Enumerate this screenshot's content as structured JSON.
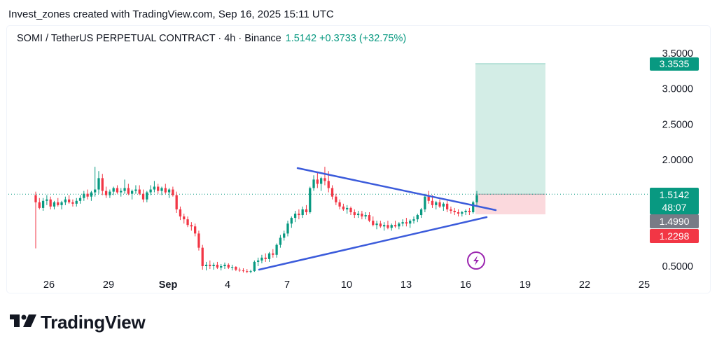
{
  "caption": "Invest_zones created with TradingView.com, Sep 16, 2025 15:11 UTC",
  "legend": {
    "symbol": "SOMI / TetherUS PERPETUAL CONTRACT · 4h · Binance",
    "last": "1.5142",
    "change": "+0.3733 (+32.75%)"
  },
  "brand": "TradingView",
  "colors": {
    "up": "#089981",
    "down": "#f23645",
    "trendline": "#3b5bdb",
    "profit_zone": "#d3ede6",
    "loss_zone": "#fbd9dd",
    "grey_badge": "#787b86"
  },
  "chart_data": {
    "type": "candlestick",
    "title": "SOMI / TetherUS PERPETUAL CONTRACT · 4h · Binance",
    "x_ticks": [
      "26",
      "29",
      "Sep",
      "4",
      "7",
      "10",
      "13",
      "16",
      "19",
      "22",
      "25"
    ],
    "y_ticks": [
      "3.5000",
      "3.0000",
      "2.5000",
      "2.0000",
      "0.5000"
    ],
    "ylim": [
      0.4,
      3.55
    ],
    "price_badges": [
      {
        "label": "3.3535",
        "value": 3.3535,
        "color": "#089981"
      },
      {
        "label": "1.5142",
        "sublabel": "48:07",
        "value": 1.5142,
        "color": "#089981"
      },
      {
        "label": "1.4990",
        "value": 1.499,
        "color": "#787b86"
      },
      {
        "label": "1.2298",
        "value": 1.2298,
        "color": "#f23645"
      }
    ],
    "last_price": 1.5142,
    "candles": [
      [
        1.5,
        1.55,
        0.75,
        1.4
      ],
      [
        1.4,
        1.46,
        1.3,
        1.32
      ],
      [
        1.32,
        1.46,
        1.28,
        1.42
      ],
      [
        1.42,
        1.5,
        1.36,
        1.44
      ],
      [
        1.44,
        1.48,
        1.3,
        1.34
      ],
      [
        1.34,
        1.42,
        1.3,
        1.4
      ],
      [
        1.4,
        1.46,
        1.34,
        1.36
      ],
      [
        1.36,
        1.42,
        1.3,
        1.4
      ],
      [
        1.4,
        1.48,
        1.36,
        1.44
      ],
      [
        1.44,
        1.5,
        1.38,
        1.4
      ],
      [
        1.4,
        1.44,
        1.34,
        1.38
      ],
      [
        1.38,
        1.46,
        1.34,
        1.42
      ],
      [
        1.42,
        1.5,
        1.38,
        1.46
      ],
      [
        1.46,
        1.56,
        1.42,
        1.52
      ],
      [
        1.52,
        1.58,
        1.44,
        1.48
      ],
      [
        1.48,
        1.56,
        1.42,
        1.54
      ],
      [
        1.54,
        1.9,
        1.48,
        1.58
      ],
      [
        1.58,
        1.84,
        1.52,
        1.74
      ],
      [
        1.74,
        1.8,
        1.5,
        1.56
      ],
      [
        1.56,
        1.62,
        1.46,
        1.5
      ],
      [
        1.5,
        1.58,
        1.46,
        1.55
      ],
      [
        1.55,
        1.62,
        1.5,
        1.6
      ],
      [
        1.6,
        1.64,
        1.52,
        1.54
      ],
      [
        1.54,
        1.6,
        1.48,
        1.56
      ],
      [
        1.56,
        1.72,
        1.52,
        1.6
      ],
      [
        1.6,
        1.66,
        1.5,
        1.52
      ],
      [
        1.52,
        1.58,
        1.44,
        1.56
      ],
      [
        1.56,
        1.64,
        1.52,
        1.58
      ],
      [
        1.58,
        1.64,
        1.5,
        1.52
      ],
      [
        1.52,
        1.58,
        1.4,
        1.44
      ],
      [
        1.44,
        1.56,
        1.4,
        1.54
      ],
      [
        1.54,
        1.64,
        1.5,
        1.58
      ],
      [
        1.58,
        1.7,
        1.54,
        1.62
      ],
      [
        1.62,
        1.66,
        1.52,
        1.56
      ],
      [
        1.56,
        1.62,
        1.5,
        1.6
      ],
      [
        1.6,
        1.66,
        1.52,
        1.54
      ],
      [
        1.54,
        1.6,
        1.46,
        1.58
      ],
      [
        1.58,
        1.62,
        1.48,
        1.5
      ],
      [
        1.5,
        1.55,
        1.25,
        1.3
      ],
      [
        1.3,
        1.34,
        1.15,
        1.2
      ],
      [
        1.2,
        1.24,
        1.1,
        1.16
      ],
      [
        1.16,
        1.2,
        1.05,
        1.08
      ],
      [
        1.08,
        1.12,
        1.0,
        1.06
      ],
      [
        1.06,
        1.1,
        0.92,
        0.96
      ],
      [
        0.96,
        1.0,
        0.72,
        0.76
      ],
      [
        0.76,
        0.8,
        0.45,
        0.5
      ],
      [
        0.5,
        0.56,
        0.44,
        0.52
      ],
      [
        0.52,
        0.58,
        0.46,
        0.5
      ],
      [
        0.5,
        0.55,
        0.45,
        0.52
      ],
      [
        0.52,
        0.56,
        0.46,
        0.48
      ],
      [
        0.48,
        0.53,
        0.44,
        0.5
      ],
      [
        0.5,
        0.55,
        0.46,
        0.52
      ],
      [
        0.52,
        0.54,
        0.46,
        0.48
      ],
      [
        0.48,
        0.52,
        0.44,
        0.49
      ],
      [
        0.49,
        0.5,
        0.43,
        0.45
      ],
      [
        0.45,
        0.48,
        0.42,
        0.44
      ],
      [
        0.44,
        0.47,
        0.41,
        0.43
      ],
      [
        0.43,
        0.46,
        0.4,
        0.42
      ],
      [
        0.42,
        0.45,
        0.4,
        0.43
      ],
      [
        0.43,
        0.58,
        0.42,
        0.56
      ],
      [
        0.56,
        0.62,
        0.5,
        0.58
      ],
      [
        0.58,
        0.66,
        0.54,
        0.62
      ],
      [
        0.62,
        0.68,
        0.56,
        0.6
      ],
      [
        0.6,
        0.7,
        0.56,
        0.68
      ],
      [
        0.68,
        0.74,
        0.62,
        0.66
      ],
      [
        0.66,
        0.82,
        0.62,
        0.8
      ],
      [
        0.8,
        0.94,
        0.76,
        0.9
      ],
      [
        0.9,
        1.0,
        0.86,
        0.96
      ],
      [
        0.96,
        1.14,
        0.92,
        1.1
      ],
      [
        1.1,
        1.2,
        1.04,
        1.18
      ],
      [
        1.18,
        1.28,
        1.12,
        1.24
      ],
      [
        1.24,
        1.3,
        1.16,
        1.22
      ],
      [
        1.22,
        1.34,
        1.18,
        1.3
      ],
      [
        1.3,
        1.36,
        1.22,
        1.26
      ],
      [
        1.26,
        1.62,
        1.24,
        1.6
      ],
      [
        1.6,
        1.78,
        1.56,
        1.72
      ],
      [
        1.72,
        1.82,
        1.6,
        1.66
      ],
      [
        1.66,
        1.76,
        1.56,
        1.74
      ],
      [
        1.74,
        1.9,
        1.64,
        1.7
      ],
      [
        1.7,
        1.84,
        1.54,
        1.6
      ],
      [
        1.6,
        1.64,
        1.44,
        1.48
      ],
      [
        1.48,
        1.52,
        1.36,
        1.4
      ],
      [
        1.4,
        1.44,
        1.3,
        1.34
      ],
      [
        1.34,
        1.38,
        1.28,
        1.3
      ],
      [
        1.3,
        1.36,
        1.24,
        1.32
      ],
      [
        1.32,
        1.34,
        1.22,
        1.26
      ],
      [
        1.26,
        1.3,
        1.18,
        1.22
      ],
      [
        1.22,
        1.28,
        1.18,
        1.24
      ],
      [
        1.24,
        1.28,
        1.16,
        1.2
      ],
      [
        1.2,
        1.26,
        1.16,
        1.22
      ],
      [
        1.22,
        1.26,
        1.12,
        1.14
      ],
      [
        1.14,
        1.2,
        1.06,
        1.08
      ],
      [
        1.08,
        1.14,
        1.02,
        1.1
      ],
      [
        1.1,
        1.14,
        1.04,
        1.06
      ],
      [
        1.06,
        1.12,
        1.0,
        1.08
      ],
      [
        1.08,
        1.14,
        1.02,
        1.04
      ],
      [
        1.04,
        1.1,
        1.0,
        1.08
      ],
      [
        1.08,
        1.14,
        1.04,
        1.06
      ],
      [
        1.06,
        1.12,
        1.02,
        1.1
      ],
      [
        1.1,
        1.16,
        1.06,
        1.12
      ],
      [
        1.12,
        1.18,
        1.06,
        1.1
      ],
      [
        1.1,
        1.16,
        1.04,
        1.14
      ],
      [
        1.14,
        1.2,
        1.1,
        1.16
      ],
      [
        1.16,
        1.24,
        1.12,
        1.22
      ],
      [
        1.22,
        1.32,
        1.18,
        1.3
      ],
      [
        1.3,
        1.52,
        1.26,
        1.48
      ],
      [
        1.48,
        1.56,
        1.38,
        1.42
      ],
      [
        1.42,
        1.5,
        1.32,
        1.36
      ],
      [
        1.36,
        1.42,
        1.3,
        1.4
      ],
      [
        1.4,
        1.44,
        1.32,
        1.34
      ],
      [
        1.34,
        1.4,
        1.28,
        1.38
      ],
      [
        1.38,
        1.42,
        1.26,
        1.3
      ],
      [
        1.3,
        1.34,
        1.24,
        1.28
      ],
      [
        1.28,
        1.32,
        1.22,
        1.26
      ],
      [
        1.26,
        1.3,
        1.2,
        1.24
      ],
      [
        1.24,
        1.28,
        1.2,
        1.26
      ],
      [
        1.26,
        1.3,
        1.22,
        1.28
      ],
      [
        1.28,
        1.32,
        1.22,
        1.26
      ],
      [
        1.26,
        1.42,
        1.24,
        1.4
      ],
      [
        1.4,
        1.56,
        1.36,
        1.5
      ]
    ]
  }
}
